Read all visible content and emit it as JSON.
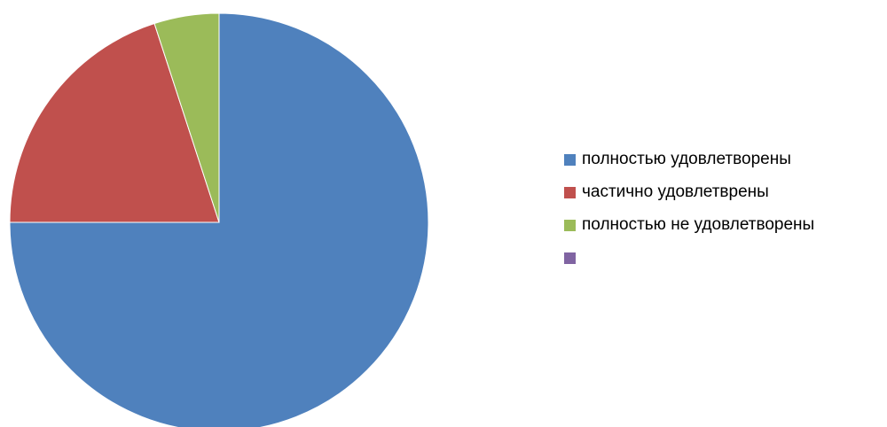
{
  "chart_data": {
    "type": "pie",
    "title": "",
    "start_angle_deg": 0,
    "direction": "clockwise",
    "slices": [
      {
        "label": "полностью удовлетворены",
        "value": 75,
        "color": "#4F81BD"
      },
      {
        "label": "частично удовлетврены",
        "value": 20,
        "color": "#C0504D"
      },
      {
        "label": "полностью не удовлетворены",
        "value": 5,
        "color": "#9BBB59"
      },
      {
        "label": "",
        "value": 0,
        "color": "#8064A2"
      }
    ],
    "legend": {
      "position": "right"
    },
    "slice_border_color": "#ffffff"
  }
}
